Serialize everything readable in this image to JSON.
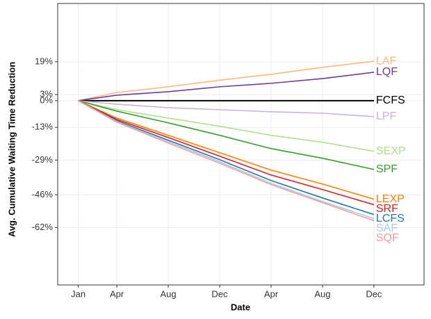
{
  "chart_data": {
    "type": "line",
    "x_label": "Date",
    "y_label": "Avg. Cumulative Waiting Time Reduction",
    "x": [
      0,
      3,
      7,
      11,
      15,
      19,
      23
    ],
    "xlim": [
      -1.6,
      26.9
    ],
    "xticks": [
      {
        "value": 0,
        "label": "Jan"
      },
      {
        "value": 3,
        "label": "Apr"
      },
      {
        "value": 7,
        "label": "Aug"
      },
      {
        "value": 11,
        "label": "Dec"
      },
      {
        "value": 15,
        "label": "Apr"
      },
      {
        "value": 19,
        "label": "Aug"
      },
      {
        "value": 23,
        "label": "Dec"
      }
    ],
    "ylim": [
      -90,
      47.5
    ],
    "yticks": [
      {
        "value": 19,
        "label": "19%"
      },
      {
        "value": 3,
        "label": "3%"
      },
      {
        "value": 0,
        "label": "0%"
      },
      {
        "value": -13,
        "label": "-13%"
      },
      {
        "value": -29,
        "label": "-29%"
      },
      {
        "value": -46,
        "label": "-46%"
      },
      {
        "value": -62,
        "label": "-62%"
      }
    ],
    "grid": true,
    "series": [
      {
        "name": "LAF",
        "color": "#fdb97a",
        "values": [
          0,
          4,
          6.8,
          10,
          12.9,
          16.3,
          19.3
        ]
      },
      {
        "name": "LQF",
        "color": "#6a3d9a",
        "values": [
          0,
          2.7,
          4.4,
          6.8,
          8.5,
          10.8,
          13.9
        ]
      },
      {
        "name": "FCFS",
        "color": "#000000",
        "values": [
          0,
          0,
          0,
          0,
          0,
          0,
          0
        ]
      },
      {
        "name": "LPF",
        "color": "#cab2d6",
        "values": [
          0,
          -1.7,
          -3.4,
          -4.4,
          -5.4,
          -6.1,
          -7.8
        ]
      },
      {
        "name": "SEXP",
        "color": "#b2df8a",
        "values": [
          0,
          -4.4,
          -8.5,
          -12.5,
          -16.9,
          -20.3,
          -24.7
        ]
      },
      {
        "name": "SPF",
        "color": "#33a02c",
        "values": [
          0,
          -5.1,
          -10.8,
          -16.9,
          -23.4,
          -28.1,
          -33.6
        ]
      },
      {
        "name": "LEXP",
        "color": "#ff7f00",
        "values": [
          0,
          -8.5,
          -16.9,
          -25.4,
          -33.9,
          -40.7,
          -48.1
        ]
      },
      {
        "name": "SRF",
        "color": "#e31a1c",
        "values": [
          0,
          -9.2,
          -18,
          -27.1,
          -36.3,
          -43.4,
          -50.8
        ]
      },
      {
        "name": "LCFS",
        "color": "#1f78b4",
        "values": [
          0,
          -9.8,
          -19.3,
          -28.8,
          -39,
          -47.5,
          -55.6
        ]
      },
      {
        "name": "SAF",
        "color": "#a6cee3",
        "values": [
          0,
          -10.2,
          -20,
          -29.8,
          -40.3,
          -49.2,
          -57.6
        ]
      },
      {
        "name": "SQF",
        "color": "#fb9a99",
        "values": [
          0,
          -10.5,
          -20.7,
          -30.5,
          -41,
          -49.8,
          -58.6
        ]
      }
    ]
  }
}
